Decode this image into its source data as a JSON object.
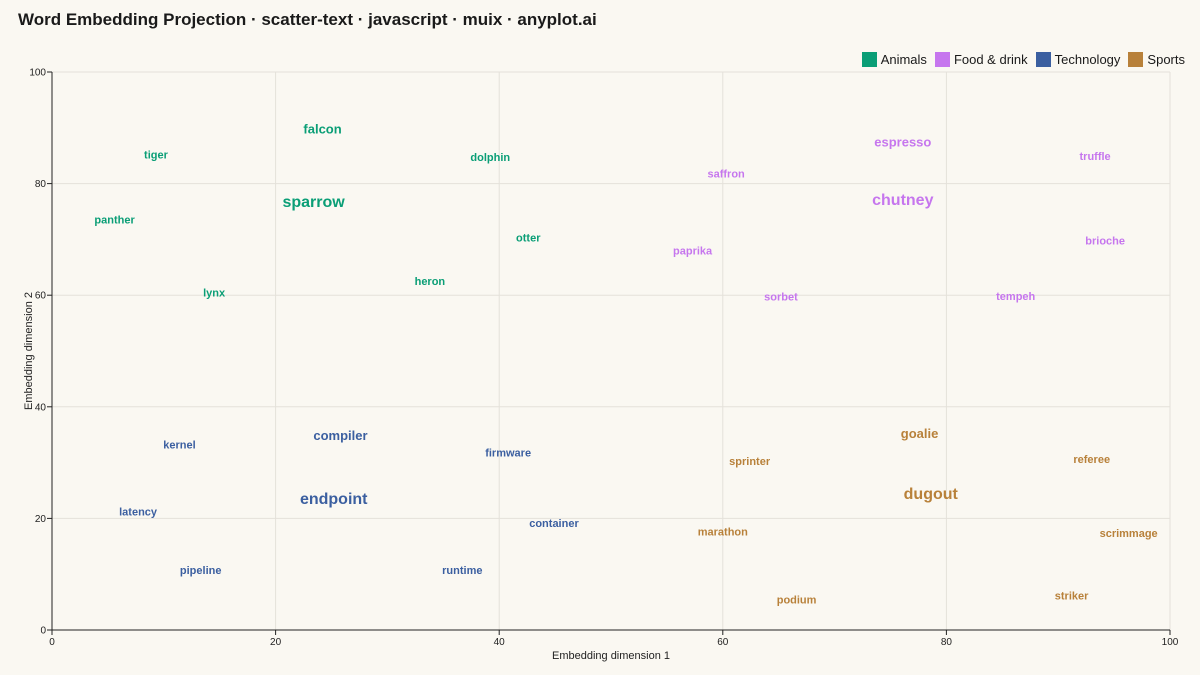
{
  "title": "Word Embedding Projection · scatter-text · javascript · muix · anyplot.ai",
  "chart_data": {
    "type": "scatter",
    "xlabel": "Embedding dimension 1",
    "ylabel": "Embedding dimension 2",
    "xlim": [
      0,
      100
    ],
    "ylim": [
      0,
      100
    ],
    "xticks": [
      0,
      20,
      40,
      60,
      80,
      100
    ],
    "yticks": [
      0,
      20,
      40,
      60,
      80,
      100
    ],
    "grid": true,
    "legend_position": "top-right",
    "series": [
      {
        "name": "Animals",
        "color": "#0a9e76",
        "points": [
          {
            "label": "tiger",
            "x": 9.3,
            "y": 85.0,
            "weight": 1
          },
          {
            "label": "falcon",
            "x": 24.2,
            "y": 89.8,
            "weight": 2
          },
          {
            "label": "dolphin",
            "x": 39.2,
            "y": 84.6,
            "weight": 1
          },
          {
            "label": "sparrow",
            "x": 23.4,
            "y": 76.6,
            "weight": 3
          },
          {
            "label": "panther",
            "x": 5.6,
            "y": 73.4,
            "weight": 1
          },
          {
            "label": "otter",
            "x": 42.6,
            "y": 70.2,
            "weight": 1
          },
          {
            "label": "heron",
            "x": 33.8,
            "y": 62.4,
            "weight": 1
          },
          {
            "label": "lynx",
            "x": 14.5,
            "y": 60.3,
            "weight": 1
          }
        ]
      },
      {
        "name": "Food & drink",
        "color": "#c676ee",
        "points": [
          {
            "label": "espresso",
            "x": 76.1,
            "y": 87.5,
            "weight": 2
          },
          {
            "label": "truffle",
            "x": 93.3,
            "y": 84.8,
            "weight": 1
          },
          {
            "label": "saffron",
            "x": 60.3,
            "y": 81.6,
            "weight": 1
          },
          {
            "label": "chutney",
            "x": 76.1,
            "y": 77.0,
            "weight": 3
          },
          {
            "label": "brioche",
            "x": 94.2,
            "y": 69.6,
            "weight": 1
          },
          {
            "label": "paprika",
            "x": 57.3,
            "y": 67.8,
            "weight": 1
          },
          {
            "label": "sorbet",
            "x": 65.2,
            "y": 59.6,
            "weight": 1
          },
          {
            "label": "tempeh",
            "x": 86.2,
            "y": 59.7,
            "weight": 1
          }
        ]
      },
      {
        "name": "Technology",
        "color": "#3b5fa0",
        "points": [
          {
            "label": "kernel",
            "x": 11.4,
            "y": 33.1,
            "weight": 1
          },
          {
            "label": "compiler",
            "x": 25.8,
            "y": 34.9,
            "weight": 2
          },
          {
            "label": "firmware",
            "x": 40.8,
            "y": 31.6,
            "weight": 1
          },
          {
            "label": "endpoint",
            "x": 25.2,
            "y": 23.4,
            "weight": 3
          },
          {
            "label": "latency",
            "x": 7.7,
            "y": 21.1,
            "weight": 1
          },
          {
            "label": "container",
            "x": 44.9,
            "y": 19.0,
            "weight": 1
          },
          {
            "label": "pipeline",
            "x": 13.3,
            "y": 10.6,
            "weight": 1
          },
          {
            "label": "runtime",
            "x": 36.7,
            "y": 10.6,
            "weight": 1
          }
        ]
      },
      {
        "name": "Sports",
        "color": "#b8813a",
        "points": [
          {
            "label": "goalie",
            "x": 77.6,
            "y": 35.2,
            "weight": 2
          },
          {
            "label": "sprinter",
            "x": 62.4,
            "y": 30.1,
            "weight": 1
          },
          {
            "label": "referee",
            "x": 93.0,
            "y": 30.5,
            "weight": 1
          },
          {
            "label": "dugout",
            "x": 78.6,
            "y": 24.3,
            "weight": 3
          },
          {
            "label": "marathon",
            "x": 60.0,
            "y": 17.5,
            "weight": 1
          },
          {
            "label": "scrimmage",
            "x": 96.3,
            "y": 17.2,
            "weight": 1
          },
          {
            "label": "podium",
            "x": 66.6,
            "y": 5.3,
            "weight": 1
          },
          {
            "label": "striker",
            "x": 91.2,
            "y": 6.0,
            "weight": 1
          }
        ]
      }
    ]
  }
}
